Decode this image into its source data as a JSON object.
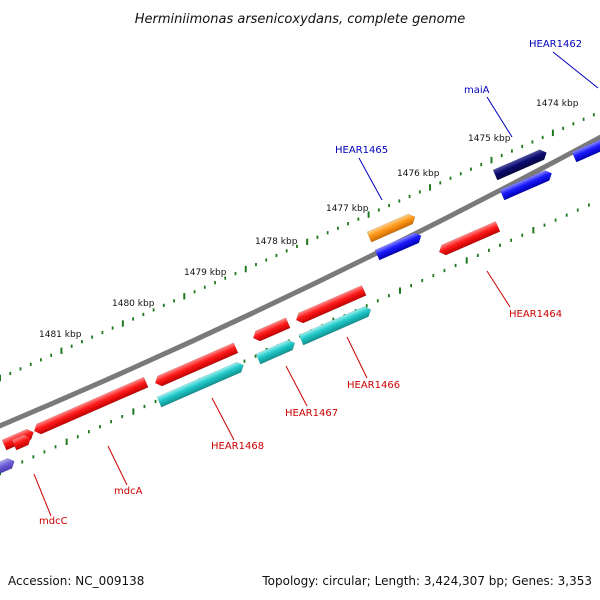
{
  "title": "Herminiimonas arsenicoxydans, complete genome",
  "footer": {
    "accession": "Accession: NC_009138",
    "stats": "Topology: circular; Length: 3,424,307 bp; Genes: 3,353"
  },
  "colors": {
    "backbone": "#808080",
    "ruler": "#1f7a1f",
    "label_red": "#cc0000",
    "label_blue": "#0000bb",
    "red_feature": "#ff1a1a",
    "cyan_feature": "#20c8c8",
    "blue_feature": "#1a1aff",
    "navy_feature": "#0a0a70",
    "orange_feature": "#ff9a1a",
    "violet_feature": "#6e60d8"
  },
  "ruler_ticks": [
    "1474 kbp",
    "1475 kbp",
    "1476 kbp",
    "1477 kbp",
    "1478 kbp",
    "1479 kbp",
    "1480 kbp",
    "1481 kbp"
  ],
  "gene_labels": [
    {
      "text": "HEAR1462",
      "color": "blue"
    },
    {
      "text": "maiA",
      "color": "blue"
    },
    {
      "text": "HEAR1465",
      "color": "blue"
    },
    {
      "text": "HEAR1464",
      "color": "red"
    },
    {
      "text": "HEAR1466",
      "color": "red"
    },
    {
      "text": "HEAR1467",
      "color": "red"
    },
    {
      "text": "HEAR1468",
      "color": "red"
    },
    {
      "text": "mdcA",
      "color": "red"
    },
    {
      "text": "mdcC",
      "color": "red"
    }
  ]
}
